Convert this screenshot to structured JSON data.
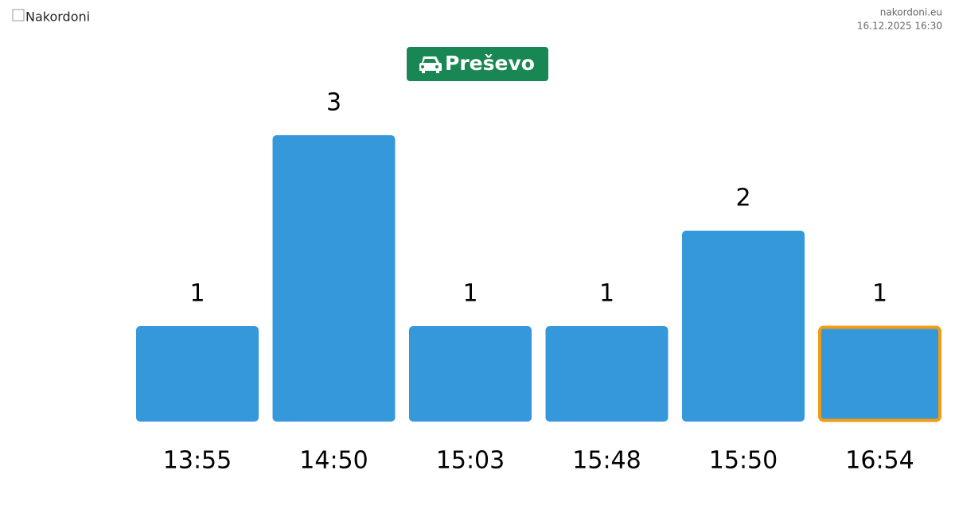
{
  "header": {
    "logo_alt": "Nakordoni",
    "site": "nakordoni.eu",
    "timestamp": "16.12.2025 16:30"
  },
  "chart_data": {
    "type": "bar",
    "title": "Preševo",
    "categories": [
      "13:55",
      "14:50",
      "15:03",
      "15:48",
      "15:50",
      "16:54"
    ],
    "values": [
      1,
      3,
      1,
      1,
      2,
      1
    ],
    "color": "#3498db",
    "highlight_index": 5,
    "highlight_color": "#f39c12"
  }
}
